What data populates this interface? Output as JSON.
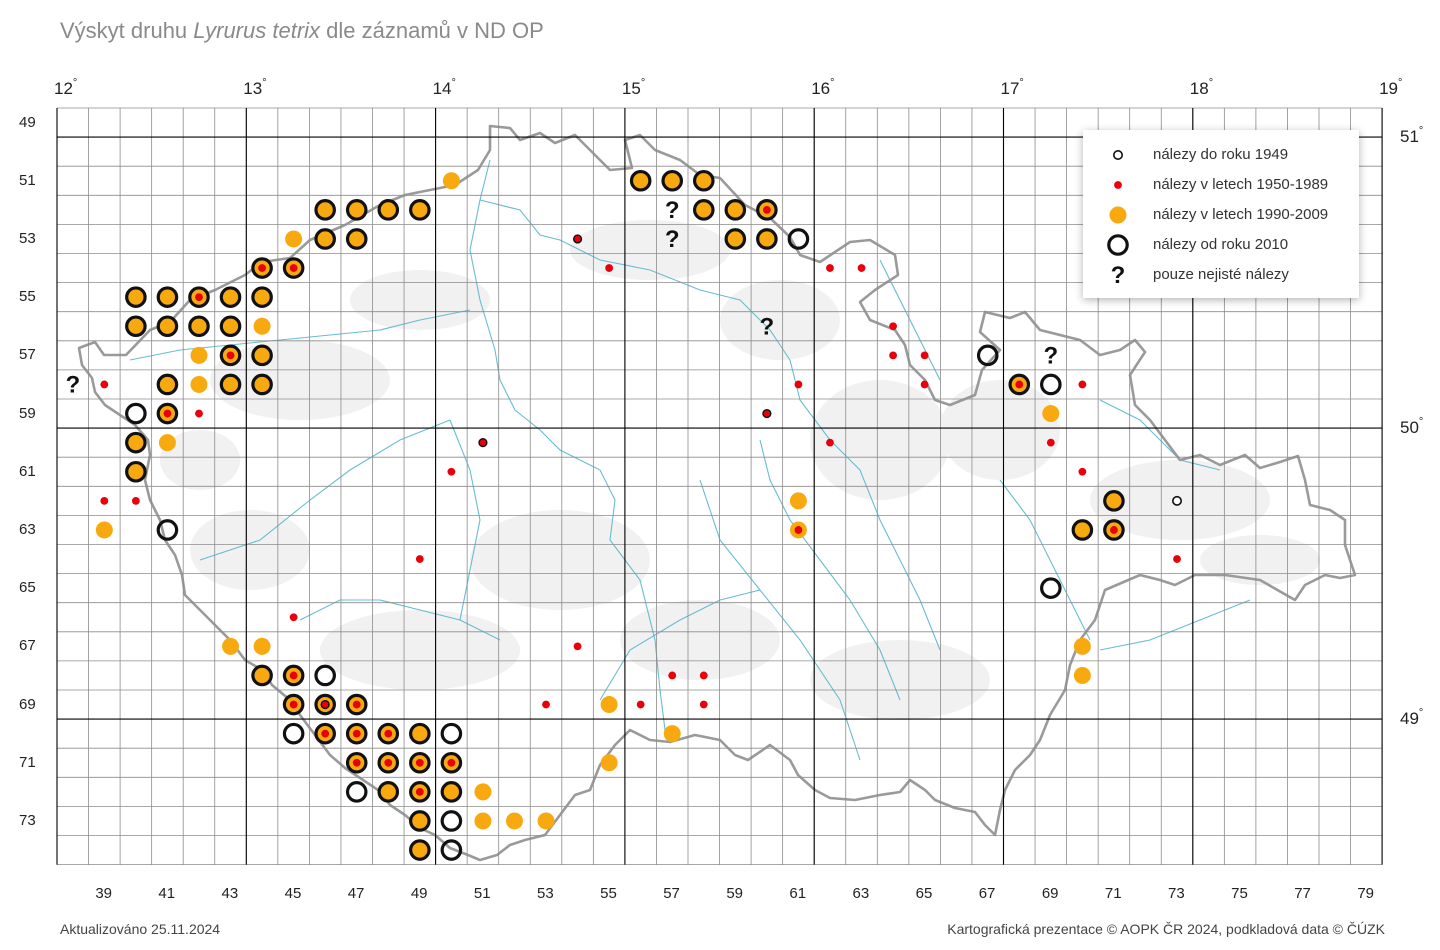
{
  "title": {
    "prefix": "Výskyt druhu ",
    "species": "Lyrurus tetrix",
    "suffix": " dle záznamů v ND OP"
  },
  "longitude_labels": [
    "12",
    "13",
    "14",
    "15",
    "16",
    "17",
    "18",
    "19"
  ],
  "latitude_labels": [
    "51",
    "50",
    "49"
  ],
  "degree_symbol": "°",
  "row_labels": [
    "49",
    "51",
    "53",
    "55",
    "57",
    "59",
    "61",
    "63",
    "65",
    "67",
    "69",
    "71",
    "73"
  ],
  "col_labels": [
    "39",
    "41",
    "43",
    "45",
    "47",
    "49",
    "51",
    "53",
    "55",
    "57",
    "59",
    "61",
    "63",
    "65",
    "67",
    "69",
    "71",
    "73",
    "75",
    "77",
    "79"
  ],
  "legend": {
    "items": [
      {
        "type": "pre1949",
        "label": "nálezy do roku 1949"
      },
      {
        "type": "r1950",
        "label": "nálezy v letech 1950-1989"
      },
      {
        "type": "r1990",
        "label": "nálezy v letech 1990-2009"
      },
      {
        "type": "r2010",
        "label": "nálezy od roku 2010"
      },
      {
        "type": "unsure",
        "label": "pouze nejisté nálezy"
      }
    ]
  },
  "colors": {
    "orange": "#F9A910",
    "red": "#E8000B",
    "black": "#111111",
    "grid": "#8c8c8c",
    "major": "#000000",
    "border": "#9a9a9a",
    "river": "#58b6cc"
  },
  "grid": {
    "col_first": 38,
    "col_last": 79,
    "row_first": 49,
    "row_last": 74
  },
  "records": [
    {
      "c": 50,
      "r": 51,
      "t": [
        "o"
      ]
    },
    {
      "c": 46,
      "r": 52,
      "t": [
        "o",
        "b"
      ]
    },
    {
      "c": 47,
      "r": 52,
      "t": [
        "o",
        "b"
      ]
    },
    {
      "c": 48,
      "r": 52,
      "t": [
        "o",
        "b"
      ]
    },
    {
      "c": 49,
      "r": 52,
      "t": [
        "o",
        "b"
      ]
    },
    {
      "c": 45,
      "r": 53,
      "t": [
        "o"
      ]
    },
    {
      "c": 46,
      "r": 53,
      "t": [
        "o",
        "b"
      ]
    },
    {
      "c": 47,
      "r": 53,
      "t": [
        "o",
        "b"
      ]
    },
    {
      "c": 44,
      "r": 54,
      "t": [
        "o",
        "r",
        "b"
      ]
    },
    {
      "c": 45,
      "r": 54,
      "t": [
        "o",
        "r",
        "b"
      ]
    },
    {
      "c": 40,
      "r": 55,
      "t": [
        "o",
        "b"
      ]
    },
    {
      "c": 41,
      "r": 55,
      "t": [
        "o",
        "b"
      ]
    },
    {
      "c": 42,
      "r": 55,
      "t": [
        "o",
        "r",
        "b"
      ]
    },
    {
      "c": 43,
      "r": 55,
      "t": [
        "o",
        "b"
      ]
    },
    {
      "c": 44,
      "r": 55,
      "t": [
        "o",
        "b"
      ]
    },
    {
      "c": 40,
      "r": 56,
      "t": [
        "o",
        "b"
      ]
    },
    {
      "c": 41,
      "r": 56,
      "t": [
        "o",
        "b"
      ]
    },
    {
      "c": 42,
      "r": 56,
      "t": [
        "o",
        "b"
      ]
    },
    {
      "c": 43,
      "r": 56,
      "t": [
        "o",
        "b"
      ]
    },
    {
      "c": 44,
      "r": 56,
      "t": [
        "o"
      ]
    },
    {
      "c": 42,
      "r": 57,
      "t": [
        "o"
      ]
    },
    {
      "c": 43,
      "r": 57,
      "t": [
        "o",
        "r",
        "b"
      ]
    },
    {
      "c": 44,
      "r": 57,
      "t": [
        "o",
        "b"
      ]
    },
    {
      "c": 38,
      "r": 58,
      "t": [
        "q"
      ]
    },
    {
      "c": 39,
      "r": 58,
      "t": [
        "r"
      ]
    },
    {
      "c": 41,
      "r": 58,
      "t": [
        "o",
        "b"
      ]
    },
    {
      "c": 42,
      "r": 58,
      "t": [
        "o"
      ]
    },
    {
      "c": 43,
      "r": 58,
      "t": [
        "o",
        "b"
      ]
    },
    {
      "c": 44,
      "r": 58,
      "t": [
        "o",
        "b"
      ]
    },
    {
      "c": 40,
      "r": 59,
      "t": [
        "b"
      ]
    },
    {
      "c": 41,
      "r": 59,
      "t": [
        "o",
        "r",
        "b"
      ]
    },
    {
      "c": 42,
      "r": 59,
      "t": [
        "r"
      ]
    },
    {
      "c": 40,
      "r": 60,
      "t": [
        "o",
        "b"
      ]
    },
    {
      "c": 41,
      "r": 60,
      "t": [
        "o"
      ]
    },
    {
      "c": 40,
      "r": 61,
      "t": [
        "o",
        "b"
      ]
    },
    {
      "c": 39,
      "r": 62,
      "t": [
        "r"
      ]
    },
    {
      "c": 40,
      "r": 62,
      "t": [
        "r"
      ]
    },
    {
      "c": 39,
      "r": 63,
      "t": [
        "o"
      ]
    },
    {
      "c": 41,
      "r": 63,
      "t": [
        "b"
      ]
    },
    {
      "c": 54,
      "r": 53,
      "t": [
        "r",
        "k"
      ]
    },
    {
      "c": 55,
      "r": 54,
      "t": [
        "r"
      ]
    },
    {
      "c": 51,
      "r": 60,
      "t": [
        "r",
        "k"
      ]
    },
    {
      "c": 50,
      "r": 61,
      "t": [
        "r"
      ]
    },
    {
      "c": 49,
      "r": 64,
      "t": [
        "r"
      ]
    },
    {
      "c": 45,
      "r": 66,
      "t": [
        "r"
      ]
    },
    {
      "c": 56,
      "r": 51,
      "t": [
        "o",
        "b"
      ]
    },
    {
      "c": 57,
      "r": 51,
      "t": [
        "o",
        "b"
      ]
    },
    {
      "c": 58,
      "r": 51,
      "t": [
        "o",
        "b"
      ]
    },
    {
      "c": 57,
      "r": 52,
      "t": [
        "q"
      ]
    },
    {
      "c": 58,
      "r": 52,
      "t": [
        "o",
        "b"
      ]
    },
    {
      "c": 59,
      "r": 52,
      "t": [
        "o",
        "b"
      ]
    },
    {
      "c": 60,
      "r": 52,
      "t": [
        "o",
        "r",
        "b"
      ]
    },
    {
      "c": 57,
      "r": 53,
      "t": [
        "q"
      ]
    },
    {
      "c": 59,
      "r": 53,
      "t": [
        "o",
        "b"
      ]
    },
    {
      "c": 60,
      "r": 53,
      "t": [
        "o",
        "b"
      ]
    },
    {
      "c": 61,
      "r": 53,
      "t": [
        "b"
      ]
    },
    {
      "c": 62,
      "r": 54,
      "t": [
        "r"
      ]
    },
    {
      "c": 63,
      "r": 54,
      "t": [
        "r"
      ]
    },
    {
      "c": 60,
      "r": 56,
      "t": [
        "q"
      ]
    },
    {
      "c": 64,
      "r": 56,
      "t": [
        "r"
      ]
    },
    {
      "c": 64,
      "r": 57,
      "t": [
        "r"
      ]
    },
    {
      "c": 65,
      "r": 57,
      "t": [
        "r"
      ]
    },
    {
      "c": 61,
      "r": 58,
      "t": [
        "r"
      ]
    },
    {
      "c": 65,
      "r": 58,
      "t": [
        "r"
      ]
    },
    {
      "c": 60,
      "r": 59,
      "t": [
        "r",
        "k"
      ]
    },
    {
      "c": 62,
      "r": 60,
      "t": [
        "r"
      ]
    },
    {
      "c": 67,
      "r": 57,
      "t": [
        "b"
      ]
    },
    {
      "c": 69,
      "r": 57,
      "t": [
        "q"
      ]
    },
    {
      "c": 68,
      "r": 58,
      "t": [
        "o",
        "r",
        "b"
      ]
    },
    {
      "c": 69,
      "r": 58,
      "t": [
        "b"
      ]
    },
    {
      "c": 70,
      "r": 58,
      "t": [
        "r"
      ]
    },
    {
      "c": 69,
      "r": 59,
      "t": [
        "o"
      ]
    },
    {
      "c": 69,
      "r": 60,
      "t": [
        "r"
      ]
    },
    {
      "c": 70,
      "r": 61,
      "t": [
        "r"
      ]
    },
    {
      "c": 71,
      "r": 62,
      "t": [
        "o",
        "b"
      ]
    },
    {
      "c": 73,
      "r": 62,
      "t": [
        "s"
      ]
    },
    {
      "c": 70,
      "r": 63,
      "t": [
        "o",
        "b"
      ]
    },
    {
      "c": 71,
      "r": 63,
      "t": [
        "o",
        "r",
        "b"
      ]
    },
    {
      "c": 73,
      "r": 64,
      "t": [
        "r"
      ]
    },
    {
      "c": 69,
      "r": 65,
      "t": [
        "b"
      ]
    },
    {
      "c": 61,
      "r": 62,
      "t": [
        "o"
      ]
    },
    {
      "c": 61,
      "r": 63,
      "t": [
        "o",
        "r"
      ]
    },
    {
      "c": 70,
      "r": 67,
      "t": [
        "o"
      ]
    },
    {
      "c": 70,
      "r": 68,
      "t": [
        "o"
      ]
    },
    {
      "c": 54,
      "r": 67,
      "t": [
        "r"
      ]
    },
    {
      "c": 57,
      "r": 68,
      "t": [
        "r"
      ]
    },
    {
      "c": 58,
      "r": 68,
      "t": [
        "r"
      ]
    },
    {
      "c": 53,
      "r": 69,
      "t": [
        "r"
      ]
    },
    {
      "c": 55,
      "r": 69,
      "t": [
        "o"
      ]
    },
    {
      "c": 56,
      "r": 69,
      "t": [
        "r"
      ]
    },
    {
      "c": 58,
      "r": 69,
      "t": [
        "r"
      ]
    },
    {
      "c": 57,
      "r": 70,
      "t": [
        "o"
      ]
    },
    {
      "c": 43,
      "r": 67,
      "t": [
        "o"
      ]
    },
    {
      "c": 44,
      "r": 67,
      "t": [
        "o"
      ]
    },
    {
      "c": 44,
      "r": 68,
      "t": [
        "o",
        "b"
      ]
    },
    {
      "c": 45,
      "r": 68,
      "t": [
        "o",
        "r",
        "b"
      ]
    },
    {
      "c": 46,
      "r": 68,
      "t": [
        "b"
      ]
    },
    {
      "c": 45,
      "r": 69,
      "t": [
        "o",
        "r",
        "b"
      ]
    },
    {
      "c": 46,
      "r": 69,
      "t": [
        "o",
        "r",
        "k",
        "b"
      ]
    },
    {
      "c": 47,
      "r": 69,
      "t": [
        "o",
        "r",
        "b"
      ]
    },
    {
      "c": 45,
      "r": 70,
      "t": [
        "b"
      ]
    },
    {
      "c": 46,
      "r": 70,
      "t": [
        "o",
        "r",
        "b"
      ]
    },
    {
      "c": 47,
      "r": 70,
      "t": [
        "o",
        "r",
        "b"
      ]
    },
    {
      "c": 48,
      "r": 70,
      "t": [
        "o",
        "r",
        "b"
      ]
    },
    {
      "c": 49,
      "r": 70,
      "t": [
        "o",
        "b"
      ]
    },
    {
      "c": 50,
      "r": 70,
      "t": [
        "b"
      ]
    },
    {
      "c": 47,
      "r": 71,
      "t": [
        "o",
        "r",
        "b"
      ]
    },
    {
      "c": 48,
      "r": 71,
      "t": [
        "o",
        "r",
        "b"
      ]
    },
    {
      "c": 49,
      "r": 71,
      "t": [
        "o",
        "r",
        "b"
      ]
    },
    {
      "c": 50,
      "r": 71,
      "t": [
        "o",
        "r",
        "b"
      ]
    },
    {
      "c": 55,
      "r": 71,
      "t": [
        "o"
      ]
    },
    {
      "c": 47,
      "r": 72,
      "t": [
        "b"
      ]
    },
    {
      "c": 48,
      "r": 72,
      "t": [
        "o",
        "b"
      ]
    },
    {
      "c": 49,
      "r": 72,
      "t": [
        "o",
        "r",
        "b"
      ]
    },
    {
      "c": 50,
      "r": 72,
      "t": [
        "o",
        "b"
      ]
    },
    {
      "c": 51,
      "r": 72,
      "t": [
        "o"
      ]
    },
    {
      "c": 49,
      "r": 73,
      "t": [
        "o",
        "b"
      ]
    },
    {
      "c": 50,
      "r": 73,
      "t": [
        "b"
      ]
    },
    {
      "c": 51,
      "r": 73,
      "t": [
        "o"
      ]
    },
    {
      "c": 52,
      "r": 73,
      "t": [
        "o"
      ]
    },
    {
      "c": 53,
      "r": 73,
      "t": [
        "o"
      ]
    },
    {
      "c": 49,
      "r": 74,
      "t": [
        "o",
        "b"
      ]
    },
    {
      "c": 50,
      "r": 74,
      "t": [
        "b"
      ]
    }
  ],
  "footer": {
    "updated": "Aktualizováno 25.11.2024",
    "credits": "Kartografická prezentace © AOPK ČR 2024, podkladová data © ČÚZK"
  }
}
